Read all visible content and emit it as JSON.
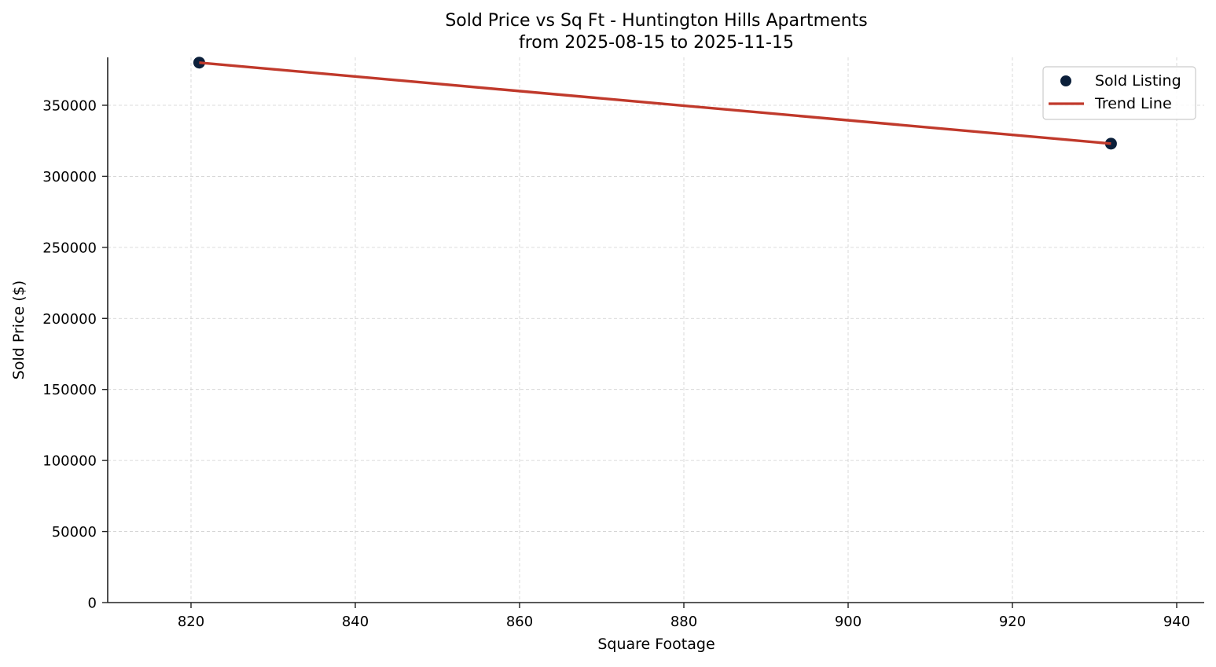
{
  "chart_data": {
    "type": "scatter",
    "title": "Sold Price vs Sq Ft - Huntington Hills Apartments",
    "subtitle": "from 2025-08-15 to 2025-11-15",
    "xlabel": "Square Footage",
    "ylabel": "Sold Price ($)",
    "xlim": [
      810,
      944
    ],
    "ylim": [
      0,
      383000
    ],
    "xticks": [
      820,
      840,
      860,
      880,
      900,
      920,
      940
    ],
    "yticks": [
      0,
      50000,
      100000,
      150000,
      200000,
      250000,
      300000,
      350000
    ],
    "grid": true,
    "legend_position": "upper right",
    "series": [
      {
        "name": "Sold Listing",
        "kind": "scatter",
        "color": "#0b1f3a",
        "points": [
          {
            "x": 821,
            "y": 380000
          },
          {
            "x": 932,
            "y": 323000
          }
        ]
      },
      {
        "name": "Trend Line",
        "kind": "line",
        "color": "#c0392b",
        "points": [
          {
            "x": 821,
            "y": 380000
          },
          {
            "x": 932,
            "y": 323000
          }
        ]
      }
    ]
  },
  "legend": {
    "items": [
      {
        "label": "Sold Listing"
      },
      {
        "label": "Trend Line"
      }
    ]
  }
}
